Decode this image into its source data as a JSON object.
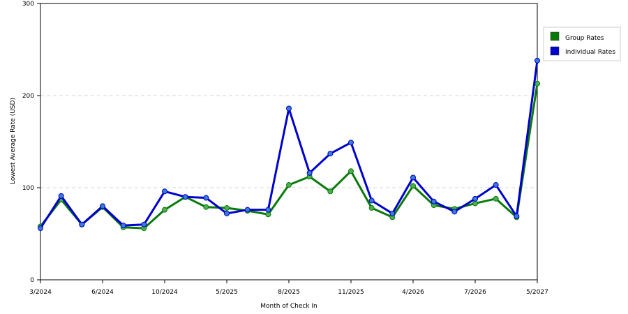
{
  "chart_data": {
    "type": "line",
    "xlabel": "Month of Check In",
    "ylabel": "Lowest Average Rate (USD)",
    "ylim": [
      0,
      300
    ],
    "yticks": [
      0,
      100,
      200,
      300
    ],
    "grid": "horizontal dashed",
    "legend_position": "right",
    "x_tick_labels": [
      "3/2024",
      "6/2024",
      "10/2024",
      "5/2025",
      "8/2025",
      "11/2025",
      "4/2026",
      "7/2026",
      "5/2027"
    ],
    "x_tick_index": [
      0,
      3,
      6,
      9,
      12,
      15,
      18,
      21,
      24
    ],
    "series": [
      {
        "name": "Group Rates",
        "color": "#0a7a0a",
        "marker_color": "#4caf50",
        "values": [
          58,
          87,
          60,
          79,
          57,
          56,
          76,
          90,
          79,
          78,
          75,
          71,
          103,
          112,
          96,
          118,
          78,
          68,
          102,
          81,
          77,
          83,
          88,
          68,
          213
        ]
      },
      {
        "name": "Individual Rates",
        "color": "#0000cc",
        "marker_color": "#3a7bd5",
        "values": [
          56,
          91,
          60,
          80,
          59,
          60,
          96,
          90,
          89,
          72,
          76,
          76,
          186,
          116,
          137,
          149,
          86,
          72,
          111,
          85,
          74,
          88,
          103,
          69,
          238
        ]
      }
    ]
  }
}
